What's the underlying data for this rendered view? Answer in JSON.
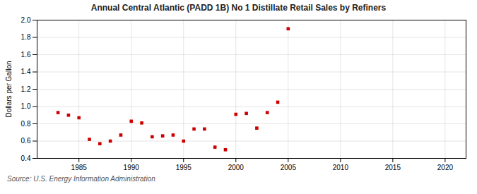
{
  "chart_data": {
    "type": "scatter",
    "title": "Annual Central Atlantic (PADD 1B) No 1 Distillate Retail Sales by Refiners",
    "ylabel": "Dollars per Gallon",
    "annotations": [
      "Source: U.S. Energy Information Administration"
    ],
    "x": [
      1983,
      1984,
      1985,
      1986,
      1987,
      1988,
      1989,
      1990,
      1991,
      1992,
      1993,
      1994,
      1995,
      1996,
      1997,
      1998,
      1999,
      2000,
      2001,
      2002,
      2003,
      2004,
      2005
    ],
    "values": [
      0.93,
      0.9,
      0.87,
      0.62,
      0.57,
      0.6,
      0.67,
      0.83,
      0.81,
      0.65,
      0.66,
      0.67,
      0.6,
      0.74,
      0.74,
      0.53,
      0.5,
      0.91,
      0.92,
      0.75,
      0.93,
      1.05,
      1.9
    ],
    "color": "#cc0000",
    "marker": "square",
    "xlim": [
      1981,
      2022
    ],
    "ylim": [
      0.4,
      2.0
    ],
    "xticks": [
      1985,
      1990,
      1995,
      2000,
      2005,
      2010,
      2015,
      2020
    ],
    "yticks": [
      0.4,
      0.6,
      0.8,
      {
        "value": 1,
        "label": "1.0"
      },
      1.2,
      1.4,
      1.6,
      1.8,
      {
        "value": 2,
        "label": "2.0"
      }
    ],
    "grid": true
  }
}
